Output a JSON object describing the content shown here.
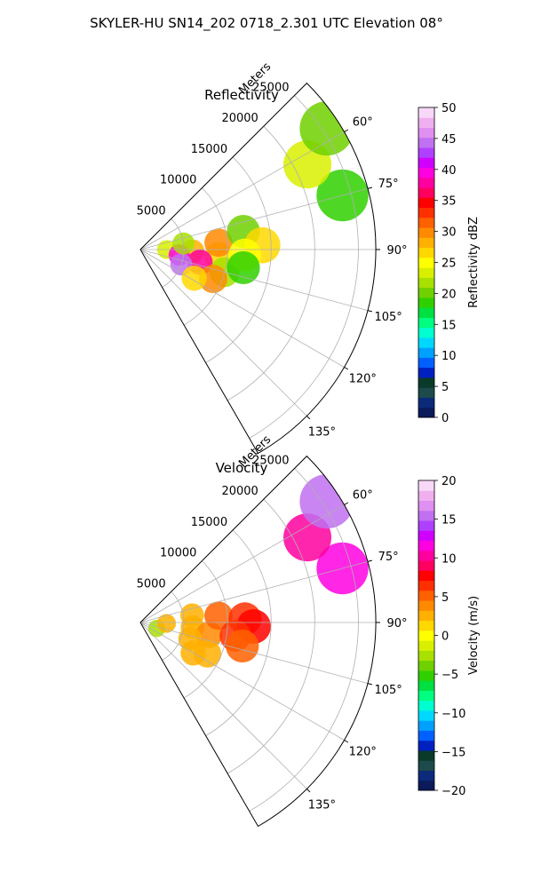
{
  "figure": {
    "title": "SKYLER-HU  SN14_202  0718_2.301 UTC Elevation 08°"
  },
  "chart_data": [
    {
      "type": "heatmap",
      "projection": "polar-sector",
      "title": "Reflectivity",
      "range_label": "Meters",
      "range_max": 27000,
      "azimuth_range": [
        45,
        150
      ],
      "range_ticks": [
        5000,
        10000,
        15000,
        20000,
        25000
      ],
      "range_tick_labels": [
        "5000",
        "10000",
        "15000",
        "20000",
        "25000"
      ],
      "azimuth_ticks": [
        60,
        75,
        90,
        105,
        120,
        135
      ],
      "azimuth_tick_labels": [
        "60°",
        "75°",
        "90°",
        "105°",
        "120°",
        "135°"
      ],
      "grid": true,
      "colorbar": {
        "label": "Reflectivity dBZ",
        "vmin": 0,
        "vmax": 50,
        "ticks": [
          0,
          5,
          10,
          15,
          20,
          25,
          30,
          35,
          40,
          45,
          50
        ],
        "tick_labels": [
          "0",
          "5",
          "10",
          "15",
          "20",
          "25",
          "30",
          "35",
          "40",
          "45",
          "50"
        ],
        "colors": [
          "#0a1a5a",
          "#0c2a7a",
          "#1d4a4a",
          "#0a3a2a",
          "#0020c0",
          "#0060ff",
          "#00a0ff",
          "#00d8ff",
          "#00ffd0",
          "#00ff80",
          "#00e040",
          "#30d000",
          "#70d000",
          "#a8e000",
          "#d8f000",
          "#ffff00",
          "#ffd800",
          "#ffb000",
          "#ff8a00",
          "#ff6000",
          "#ff3000",
          "#ff0000",
          "#ff0060",
          "#ff00a0",
          "#ff00e0",
          "#d000ff",
          "#b040ff",
          "#c070f0",
          "#e090f0",
          "#f0b0f0",
          "#f8d8f8"
        ]
      },
      "echoes": [
        {
          "az": 90,
          "r": 3000,
          "value": 24
        },
        {
          "az": 92,
          "r": 6000,
          "value": 28
        },
        {
          "az": 95,
          "r": 9000,
          "value": 27
        },
        {
          "az": 98,
          "r": 4500,
          "value": 40
        },
        {
          "az": 102,
          "r": 7000,
          "value": 38
        },
        {
          "az": 105,
          "r": 10000,
          "value": 22
        },
        {
          "az": 110,
          "r": 5000,
          "value": 44
        },
        {
          "az": 112,
          "r": 9000,
          "value": 30
        },
        {
          "az": 118,
          "r": 7000,
          "value": 26
        },
        {
          "az": 85,
          "r": 9000,
          "value": 30
        },
        {
          "az": 82,
          "r": 5000,
          "value": 22
        },
        {
          "az": 80,
          "r": 12000,
          "value": 20
        },
        {
          "az": 88,
          "r": 14000,
          "value": 26
        },
        {
          "az": 93,
          "r": 12000,
          "value": 25
        },
        {
          "az": 100,
          "r": 12000,
          "value": 18
        },
        {
          "az": 75,
          "r": 24000,
          "value": 18
        },
        {
          "az": 63,
          "r": 21500,
          "value": 24
        },
        {
          "az": 57,
          "r": 25500,
          "value": 20
        }
      ]
    },
    {
      "type": "heatmap",
      "projection": "polar-sector",
      "title": "Velocity",
      "range_label": "Meters",
      "range_max": 27000,
      "azimuth_range": [
        45,
        150
      ],
      "range_ticks": [
        5000,
        10000,
        15000,
        20000,
        25000
      ],
      "range_tick_labels": [
        "5000",
        "10000",
        "15000",
        "20000",
        "25000"
      ],
      "azimuth_ticks": [
        60,
        75,
        90,
        105,
        120,
        135
      ],
      "azimuth_tick_labels": [
        "60°",
        "75°",
        "90°",
        "105°",
        "120°",
        "135°"
      ],
      "grid": true,
      "colorbar": {
        "label": "Velocity (m/s)",
        "vmin": -20,
        "vmax": 20,
        "ticks": [
          -20,
          -15,
          -10,
          -5,
          0,
          5,
          10,
          15,
          20
        ],
        "tick_labels": [
          "−20",
          "−15",
          "−10",
          "−5",
          "0",
          "5",
          "10",
          "15",
          "20"
        ],
        "colors": [
          "#0a1a5a",
          "#0c2a7a",
          "#1d4a4a",
          "#0a3a2a",
          "#0020c0",
          "#0060ff",
          "#00a0ff",
          "#00d8ff",
          "#00ffd0",
          "#00ff80",
          "#00e040",
          "#30d000",
          "#70d000",
          "#a8e000",
          "#d8f000",
          "#ffff00",
          "#ffd800",
          "#ffb000",
          "#ff8a00",
          "#ff6000",
          "#ff3000",
          "#ff0000",
          "#ff0060",
          "#ff00a0",
          "#ff00e0",
          "#d000ff",
          "#b040ff",
          "#c070f0",
          "#e090f0",
          "#f0b0f0",
          "#f8d8f8"
        ]
      },
      "echoes": [
        {
          "az": 110,
          "r": 2000,
          "value": -2
        },
        {
          "az": 92,
          "r": 3000,
          "value": 2
        },
        {
          "az": 95,
          "r": 6000,
          "value": 3
        },
        {
          "az": 100,
          "r": 8000,
          "value": 4
        },
        {
          "az": 108,
          "r": 6000,
          "value": 3
        },
        {
          "az": 115,
          "r": 8500,
          "value": 2
        },
        {
          "az": 85,
          "r": 9000,
          "value": 5
        },
        {
          "az": 88,
          "r": 12000,
          "value": 7
        },
        {
          "az": 92,
          "r": 13000,
          "value": 8
        },
        {
          "az": 98,
          "r": 11000,
          "value": 6
        },
        {
          "az": 82,
          "r": 6000,
          "value": 3
        },
        {
          "az": 120,
          "r": 7000,
          "value": 2
        },
        {
          "az": 103,
          "r": 12000,
          "value": 5
        },
        {
          "az": 75,
          "r": 24000,
          "value": 12
        },
        {
          "az": 63,
          "r": 21500,
          "value": 10
        },
        {
          "az": 57,
          "r": 25500,
          "value": 16
        }
      ]
    }
  ]
}
